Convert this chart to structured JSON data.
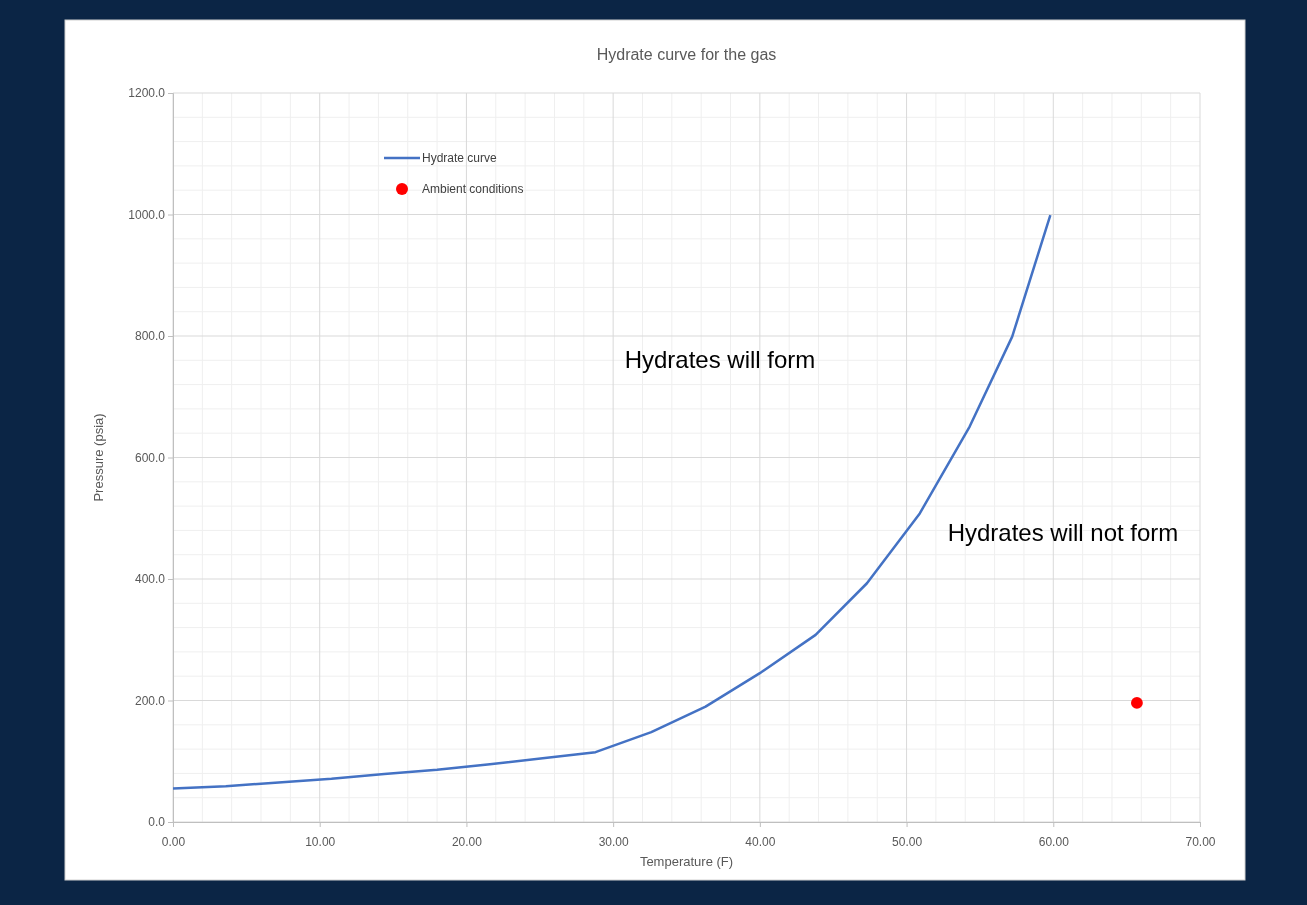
{
  "chart_data": {
    "type": "line",
    "title": "Hydrate curve for the gas",
    "xlabel": "Temperature (F)",
    "ylabel": "Pressure (psia)",
    "xlim": [
      0,
      70
    ],
    "xticks": [
      {
        "value": 0,
        "label": "0.00"
      },
      {
        "value": 10,
        "label": "10.00"
      },
      {
        "value": 20,
        "label": "20.00"
      },
      {
        "value": 30,
        "label": "30.00"
      },
      {
        "value": 40,
        "label": "40.00"
      },
      {
        "value": 50,
        "label": "50.00"
      },
      {
        "value": 60,
        "label": "60.00"
      },
      {
        "value": 70,
        "label": "70.00"
      }
    ],
    "ylim": [
      0,
      1200
    ],
    "yticks": [
      {
        "value": 0,
        "label": "0.0"
      },
      {
        "value": 200,
        "label": "200.0"
      },
      {
        "value": 400,
        "label": "400.0"
      },
      {
        "value": 600,
        "label": "600.0"
      },
      {
        "value": 800,
        "label": "800.0"
      },
      {
        "value": 1000,
        "label": "1000.0"
      },
      {
        "value": 1200,
        "label": "1200.0"
      }
    ],
    "grid": true,
    "legend": "top left",
    "series": [
      {
        "name": "Hydrate curve",
        "color": "#4472c4",
        "marker": "none",
        "x": [
          0,
          3.6,
          7.2,
          10.8,
          14.4,
          18,
          21.6,
          25.2,
          28.8,
          32.6,
          36.3,
          40.0,
          43.8,
          47.3,
          50.9,
          54.3,
          57.2,
          59.8
        ],
        "values": [
          55,
          59,
          65,
          71,
          79,
          86,
          95,
          105,
          115,
          148,
          190,
          245,
          308,
          393,
          508,
          651,
          799,
          999
        ]
      },
      {
        "name": "Ambient conditions",
        "type": "scatter",
        "color": "#ff0000",
        "marker": "circle",
        "x": [
          65.7
        ],
        "values": [
          196
        ]
      }
    ],
    "annotations": [
      "Hydrates will form",
      "Hydrates will not form"
    ]
  }
}
